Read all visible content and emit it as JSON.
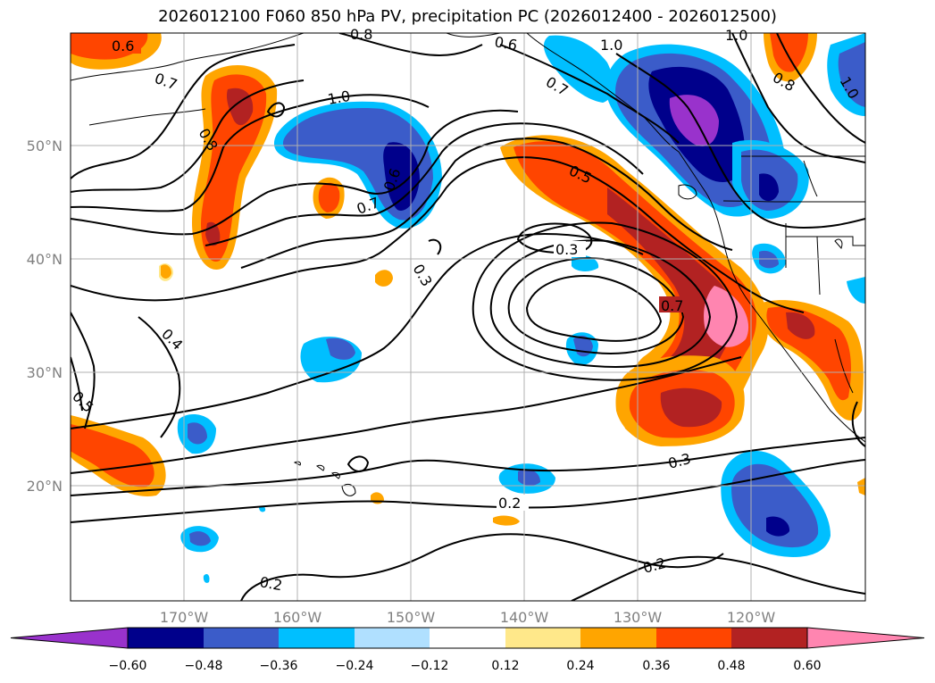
{
  "title": "2026012100 F060 850 hPa PV, precipitation PC (2026012400 - 2026012500)",
  "map": {
    "lat_labels": [
      "50°N",
      "40°N",
      "30°N",
      "20°N"
    ],
    "lon_labels": [
      "170°W",
      "160°W",
      "150°W",
      "140°W",
      "130°W",
      "120°W"
    ],
    "contour_labels": [
      "0.6",
      "0.7",
      "0.8",
      "1.0",
      "0.7",
      "0.6",
      "0.3",
      "0.4",
      "0.5",
      "0.6",
      "1.0",
      "0.7",
      "0.5",
      "0.3",
      "0.7",
      "0.3",
      "0.2",
      "0.2",
      "0.2",
      "0.8",
      "1.0",
      "1.0",
      "0.8"
    ]
  },
  "colorbar": {
    "colors": [
      "#9932cc",
      "#00008b",
      "#3b5cc9",
      "#00bfff",
      "#b0e0ff",
      "#ffffff",
      "#ffe88a",
      "#ffa500",
      "#ff4500",
      "#b22222",
      "#ff85b0"
    ],
    "tick_labels": [
      "−0.60",
      "−0.48",
      "−0.36",
      "−0.24",
      "−0.12",
      "0.12",
      "0.24",
      "0.36",
      "0.48",
      "0.60"
    ]
  }
}
